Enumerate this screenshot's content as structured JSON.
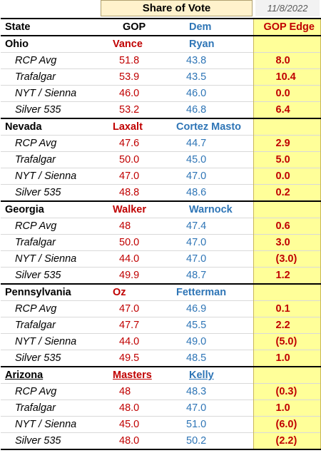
{
  "header": {
    "share_title": "Share of Vote",
    "date": "11/8/2022",
    "col_state": "State",
    "col_gop": "GOP",
    "col_dem": "Dem",
    "col_edge": "GOP Edge"
  },
  "states": [
    {
      "name": "Ohio",
      "gop": "Vance",
      "dem": "Ryan",
      "underline": false,
      "polls": [
        {
          "name": "RCP Avg",
          "gop": "51.8",
          "dem": "43.8",
          "edge": "8.0"
        },
        {
          "name": "Trafalgar",
          "gop": "53.9",
          "dem": "43.5",
          "edge": "10.4"
        },
        {
          "name": "NYT / Sienna",
          "gop": "46.0",
          "dem": "46.0",
          "edge": "0.0"
        },
        {
          "name": "Silver 535",
          "gop": "53.2",
          "dem": "46.8",
          "edge": "6.4"
        }
      ]
    },
    {
      "name": "Nevada",
      "gop": "Laxalt",
      "dem": "Cortez Masto",
      "underline": false,
      "polls": [
        {
          "name": "RCP Avg",
          "gop": "47.6",
          "dem": "44.7",
          "edge": "2.9"
        },
        {
          "name": "Trafalgar",
          "gop": "50.0",
          "dem": "45.0",
          "edge": "5.0"
        },
        {
          "name": "NYT / Sienna",
          "gop": "47.0",
          "dem": "47.0",
          "edge": "0.0"
        },
        {
          "name": "Silver 535",
          "gop": "48.8",
          "dem": "48.6",
          "edge": "0.2"
        }
      ]
    },
    {
      "name": "Georgia",
      "gop": "Walker",
      "dem": "Warnock",
      "underline": false,
      "polls": [
        {
          "name": "RCP Avg",
          "gop": "48",
          "dem": "47.4",
          "edge": "0.6"
        },
        {
          "name": "Trafalgar",
          "gop": "50.0",
          "dem": "47.0",
          "edge": "3.0"
        },
        {
          "name": "NYT / Sienna",
          "gop": "44.0",
          "dem": "47.0",
          "edge": "(3.0)"
        },
        {
          "name": "Silver 535",
          "gop": "49.9",
          "dem": "48.7",
          "edge": "1.2"
        }
      ]
    },
    {
      "name": "Pennsylvania",
      "gop": "Oz",
      "dem": "Fetterman",
      "underline": false,
      "polls": [
        {
          "name": "RCP Avg",
          "gop": "47.0",
          "dem": "46.9",
          "edge": "0.1"
        },
        {
          "name": "Trafalgar",
          "gop": "47.7",
          "dem": "45.5",
          "edge": "2.2"
        },
        {
          "name": "NYT / Sienna",
          "gop": "44.0",
          "dem": "49.0",
          "edge": "(5.0)"
        },
        {
          "name": "Silver 535",
          "gop": "49.5",
          "dem": "48.5",
          "edge": "1.0"
        }
      ]
    },
    {
      "name": "Arizona",
      "gop": "Masters",
      "dem": "Kelly",
      "underline": true,
      "polls": [
        {
          "name": "RCP Avg",
          "gop": "48",
          "dem": "48.3",
          "edge": "(0.3)"
        },
        {
          "name": "Trafalgar",
          "gop": "48.0",
          "dem": "47.0",
          "edge": "1.0"
        },
        {
          "name": "NYT / Sienna",
          "gop": "45.0",
          "dem": "51.0",
          "edge": "(6.0)"
        },
        {
          "name": "Silver 535",
          "gop": "48.0",
          "dem": "50.2",
          "edge": "(2.2)"
        }
      ]
    }
  ]
}
